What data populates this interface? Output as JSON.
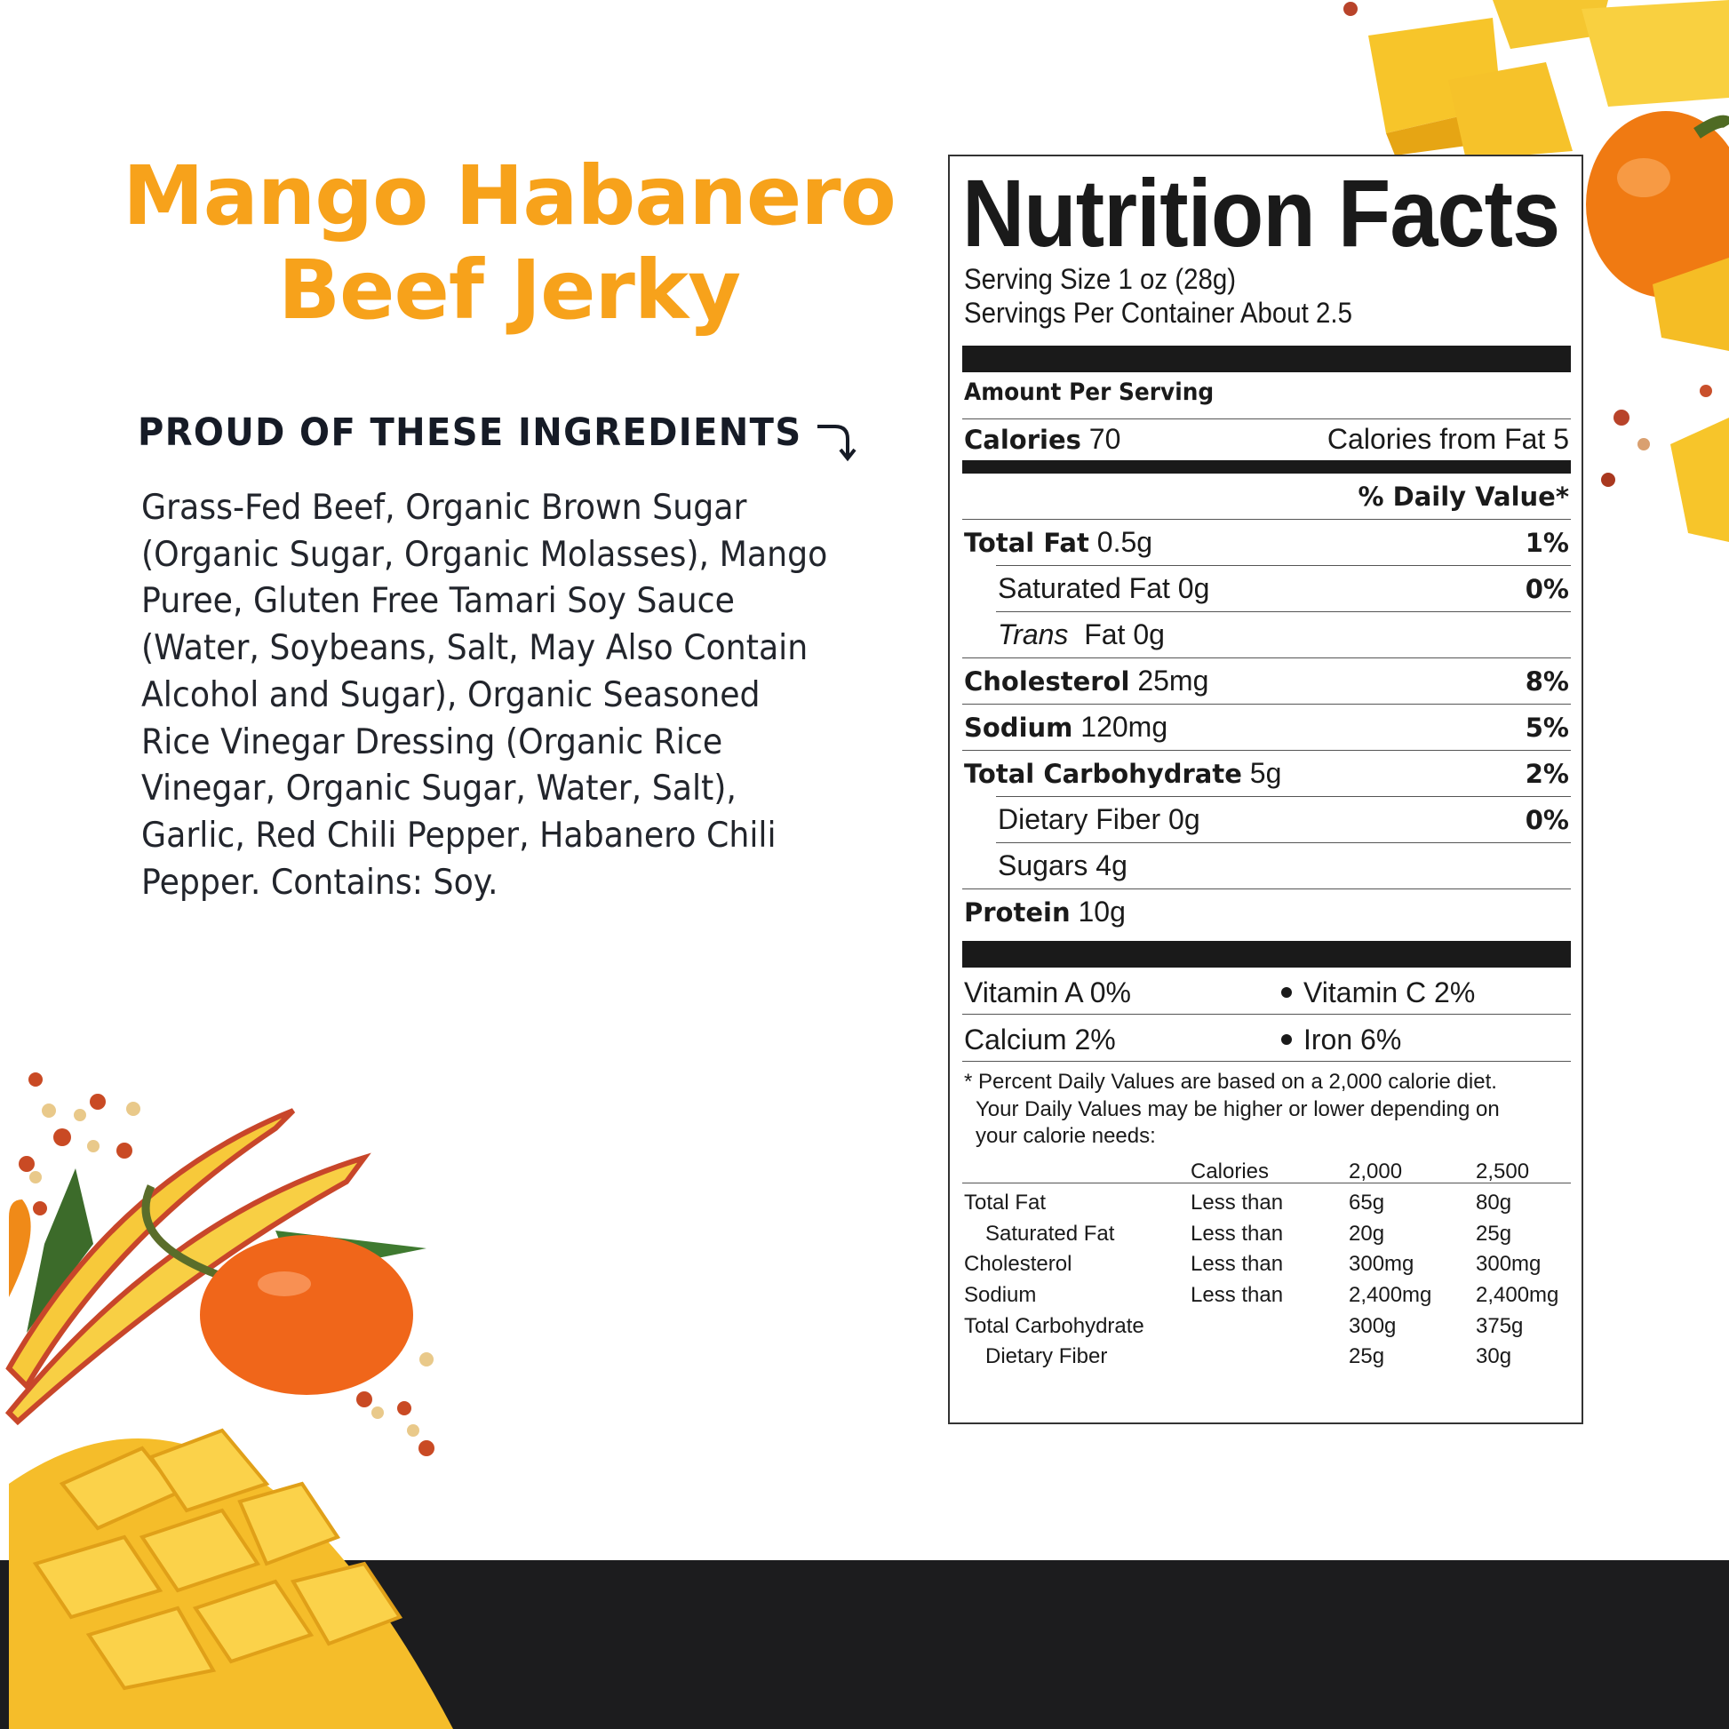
{
  "product": {
    "title_line1": "Mango Habanero",
    "title_line2": "Beef Jerky",
    "brand_color": "#F7A21B"
  },
  "ingredients": {
    "heading": "PROUD OF THESE INGREDIENTS",
    "heading_icon": "curved-arrow-down-icon",
    "lines": [
      "Grass-Fed Beef, Organic Brown Sugar",
      "(Organic Sugar, Organic Molasses), Mango",
      "Puree, Gluten Free Tamari Soy Sauce",
      "(Water, Soybeans, Salt, May Also Contain",
      "Alcohol and Sugar), Organic Seasoned",
      "Rice Vinegar Dressing (Organic Rice",
      "Vinegar, Organic Sugar, Water, Salt),",
      "Garlic, Red Chili Pepper, Habanero Chili",
      "Pepper. Contains: Soy."
    ]
  },
  "nutrition": {
    "title": "Nutrition Facts",
    "serving_size": "Serving Size 1 oz (28g)",
    "servings_per_container": "Servings Per Container About 2.5",
    "amount_per_serving": "Amount Per Serving",
    "calories_label": "Calories",
    "calories_value": "70",
    "calories_from_fat": "Calories from Fat 5",
    "daily_value_header": "% Daily Value*",
    "rows": [
      {
        "name": "Total Fat",
        "amount": "0.5g",
        "dv": "1%"
      },
      {
        "name": "Saturated Fat",
        "amount": "0g",
        "dv": "0%"
      },
      {
        "name": "Trans",
        "amount": "Fat 0g",
        "dv": ""
      },
      {
        "name": "Cholesterol",
        "amount": "25mg",
        "dv": "8%"
      },
      {
        "name": "Sodium",
        "amount": "120mg",
        "dv": "5%"
      },
      {
        "name": "Total Carbohydrate",
        "amount": "5g",
        "dv": "2%"
      },
      {
        "name": "Dietary Fiber",
        "amount": "0g",
        "dv": "0%"
      },
      {
        "name": "Sugars",
        "amount": "4g",
        "dv": ""
      },
      {
        "name": "Protein",
        "amount": "10g",
        "dv": ""
      }
    ],
    "vitamins": [
      {
        "left": "Vitamin A 0%",
        "right": "Vitamin C 2%"
      },
      {
        "left": "Calcium 2%",
        "right": "Iron 6%"
      }
    ],
    "footnote": [
      "* Percent Daily Values are based on a 2,000 calorie diet.",
      "Your Daily Values may be higher or lower depending on",
      "your calorie needs:"
    ],
    "dv_table": {
      "header": [
        "",
        "Calories",
        "2,000",
        "2,500"
      ],
      "rows": [
        [
          "Total Fat",
          "Less than",
          "65g",
          "80g"
        ],
        [
          "Saturated Fat",
          "Less than",
          "20g",
          "25g"
        ],
        [
          "Cholesterol",
          "Less than",
          "300mg",
          "300mg"
        ],
        [
          "Sodium",
          "Less than",
          "2,400mg",
          "2,400mg"
        ],
        [
          "Total Carbohydrate",
          "",
          "300g",
          "375g"
        ],
        [
          "Dietary Fiber",
          "",
          "25g",
          "30g"
        ]
      ]
    }
  }
}
